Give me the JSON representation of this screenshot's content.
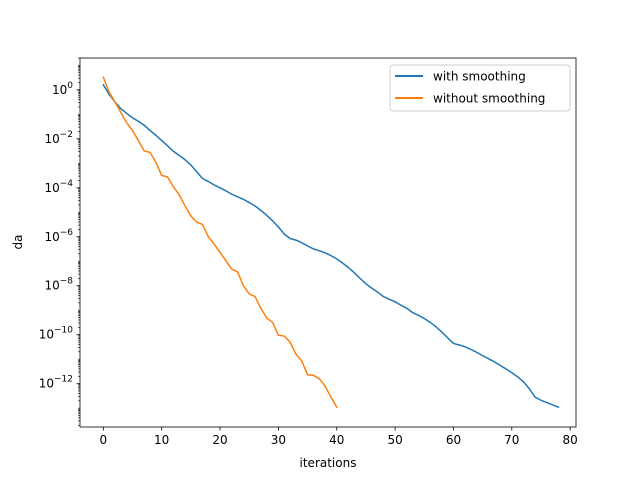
{
  "chart_data": {
    "type": "line",
    "title": "",
    "xlabel": "iterations",
    "ylabel": "da",
    "yscale": "log",
    "xlim": [
      -4,
      81
    ],
    "ylim": [
      1.7e-14,
      20
    ],
    "grid": false,
    "legend_position": "top-right",
    "x_ticks": [
      0,
      10,
      20,
      30,
      40,
      50,
      60,
      70,
      80
    ],
    "x_tick_labels": [
      "0",
      "10",
      "20",
      "30",
      "40",
      "50",
      "60",
      "70",
      "80"
    ],
    "y_ticks": [
      1,
      0.01,
      0.0001,
      1e-06,
      1e-08,
      1e-10,
      1e-12
    ],
    "y_tick_labels": [
      {
        "base": "10",
        "exp": "0"
      },
      {
        "base": "10",
        "exp": "−2"
      },
      {
        "base": "10",
        "exp": "−4"
      },
      {
        "base": "10",
        "exp": "−6"
      },
      {
        "base": "10",
        "exp": "−8"
      },
      {
        "base": "10",
        "exp": "−10"
      },
      {
        "base": "10",
        "exp": "−12"
      }
    ],
    "series": [
      {
        "name": "with smoothing",
        "color": "#1f77b4",
        "x": [
          0,
          1,
          2,
          3,
          4,
          5,
          6,
          7,
          8,
          9,
          10,
          11,
          12,
          13,
          14,
          15,
          16,
          17,
          18,
          19,
          20,
          21,
          22,
          23,
          24,
          25,
          26,
          27,
          28,
          29,
          30,
          31,
          32,
          33,
          34,
          35,
          36,
          37,
          38,
          39,
          40,
          41,
          42,
          43,
          44,
          45,
          46,
          47,
          48,
          49,
          50,
          51,
          52,
          53,
          54,
          55,
          56,
          57,
          58,
          59,
          60,
          61,
          62,
          63,
          64,
          65,
          66,
          67,
          68,
          69,
          70,
          71,
          72,
          73,
          74,
          75,
          76,
          77,
          78
        ],
        "y": [
          1.6,
          0.65,
          0.32,
          0.17,
          0.11,
          0.072,
          0.052,
          0.036,
          0.022,
          0.014,
          0.0085,
          0.0052,
          0.0031,
          0.0021,
          0.0014,
          0.00085,
          0.00045,
          0.00024,
          0.00018,
          0.00013,
          0.0001,
          7.5e-05,
          5.5e-05,
          4.3e-05,
          3.4e-05,
          2.5e-05,
          1.8e-05,
          1.2e-05,
          7.5e-06,
          4.5e-06,
          2.5e-06,
          1.3e-06,
          8.5e-07,
          7.3e-07,
          5.7e-07,
          4.2e-07,
          3.2e-07,
          2.7e-07,
          2.2e-07,
          1.7e-07,
          1.25e-07,
          8.5e-08,
          5.5e-08,
          3.4e-08,
          2e-08,
          1.2e-08,
          8e-09,
          5.5e-09,
          3.6e-09,
          2.8e-09,
          2.2e-09,
          1.6e-09,
          1.2e-09,
          8e-10,
          6.2e-10,
          4.6e-10,
          3.2e-10,
          2.1e-10,
          1.3e-10,
          7.5e-11,
          4.4e-11,
          3.8e-11,
          3.2e-11,
          2.5e-11,
          1.9e-11,
          1.4e-11,
          1.05e-11,
          7.8e-12,
          5.6e-12,
          4e-12,
          2.8e-12,
          1.9e-12,
          1.2e-12,
          6.2e-13,
          2.8e-13,
          2.1e-13,
          1.7e-13,
          1.35e-13,
          1.1e-13
        ]
      },
      {
        "name": "without smoothing",
        "color": "#ff7f0e",
        "x": [
          0,
          1,
          2,
          3,
          4,
          5,
          6,
          7,
          8,
          9,
          10,
          11,
          12,
          13,
          14,
          15,
          16,
          17,
          18,
          19,
          20,
          21,
          22,
          23,
          24,
          25,
          26,
          27,
          28,
          29,
          30,
          31,
          32,
          33,
          34,
          35,
          36,
          37,
          38,
          39,
          40
        ],
        "y": [
          3.3,
          0.8,
          0.32,
          0.12,
          0.045,
          0.022,
          0.0085,
          0.0032,
          0.0028,
          0.0011,
          0.00032,
          0.00028,
          0.00011,
          5.2e-05,
          1.8e-05,
          7e-06,
          4e-06,
          3.2e-06,
          1e-06,
          5e-07,
          2.3e-07,
          1.05e-07,
          4.8e-08,
          3.7e-08,
          1e-08,
          4.6e-09,
          3.6e-09,
          1.2e-09,
          4.8e-10,
          3.2e-10,
          9.5e-11,
          8.8e-11,
          5e-11,
          1.6e-11,
          8.5e-12,
          2.3e-12,
          2.2e-12,
          1.6e-12,
          8e-13,
          2.8e-13,
          1.1e-13
        ]
      }
    ]
  }
}
